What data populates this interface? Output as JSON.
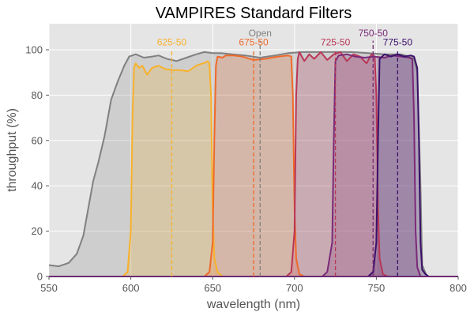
{
  "chart_data": {
    "type": "area",
    "title": "VAMPIRES Standard Filters",
    "xlabel": "wavelength (nm)",
    "ylabel": "throughput (%)",
    "xlim": [
      550,
      800
    ],
    "ylim": [
      0,
      112
    ],
    "xticks": [
      550,
      600,
      650,
      700,
      750,
      800
    ],
    "yticks": [
      0,
      20,
      40,
      60,
      80,
      100
    ],
    "grid": true,
    "legend": "none (inline annotations)",
    "series": [
      {
        "name": "Open",
        "color": "#808080",
        "center_nm": 679,
        "points": [
          [
            550,
            5
          ],
          [
            556,
            4.5
          ],
          [
            562,
            6
          ],
          [
            567,
            10
          ],
          [
            571,
            18
          ],
          [
            574,
            30
          ],
          [
            577,
            42
          ],
          [
            580,
            50
          ],
          [
            584,
            62
          ],
          [
            588,
            78
          ],
          [
            592,
            86
          ],
          [
            596,
            93
          ],
          [
            599,
            97
          ],
          [
            603,
            98
          ],
          [
            608,
            96.5
          ],
          [
            613,
            97
          ],
          [
            617,
            97.5
          ],
          [
            622,
            96
          ],
          [
            628,
            95
          ],
          [
            634,
            96.5
          ],
          [
            640,
            98
          ],
          [
            645,
            99
          ],
          [
            650,
            98.5
          ],
          [
            655,
            98.5
          ],
          [
            662,
            98
          ],
          [
            670,
            97.5
          ],
          [
            679,
            96.5
          ],
          [
            688,
            97.5
          ],
          [
            696,
            98.5
          ],
          [
            705,
            99
          ],
          [
            715,
            99
          ],
          [
            725,
            99
          ],
          [
            735,
            99
          ],
          [
            745,
            98.5
          ],
          [
            755,
            98
          ],
          [
            765,
            98
          ],
          [
            770,
            97
          ],
          [
            773,
            96
          ],
          [
            775,
            90
          ],
          [
            777,
            40
          ],
          [
            778,
            5
          ],
          [
            781,
            0
          ],
          [
            800,
            0
          ]
        ]
      },
      {
        "name": "625-50",
        "color": "#f8b12a",
        "center_nm": 625,
        "points": [
          [
            550,
            0
          ],
          [
            595,
            0
          ],
          [
            598,
            2
          ],
          [
            600,
            20
          ],
          [
            601,
            70
          ],
          [
            602,
            92
          ],
          [
            603,
            94
          ],
          [
            605,
            92
          ],
          [
            607,
            93
          ],
          [
            610,
            89
          ],
          [
            613,
            92
          ],
          [
            617,
            93
          ],
          [
            621,
            91.5
          ],
          [
            626,
            91
          ],
          [
            630,
            91
          ],
          [
            635,
            90.5
          ],
          [
            640,
            93
          ],
          [
            644,
            94
          ],
          [
            646,
            94.5
          ],
          [
            647,
            95
          ],
          [
            648,
            94
          ],
          [
            649,
            80
          ],
          [
            650,
            30
          ],
          [
            651,
            8
          ],
          [
            653,
            2
          ],
          [
            656,
            0
          ],
          [
            800,
            0
          ]
        ]
      },
      {
        "name": "675-50",
        "color": "#ef6a2a",
        "center_nm": 675,
        "points": [
          [
            550,
            0
          ],
          [
            645,
            0
          ],
          [
            648,
            2
          ],
          [
            650,
            15
          ],
          [
            651,
            60
          ],
          [
            652,
            93
          ],
          [
            653,
            97
          ],
          [
            656,
            96.5
          ],
          [
            658,
            97.5
          ],
          [
            663,
            97.5
          ],
          [
            668,
            97
          ],
          [
            675,
            95.5
          ],
          [
            682,
            96
          ],
          [
            690,
            97
          ],
          [
            696,
            97.5
          ],
          [
            698,
            97
          ],
          [
            699,
            80
          ],
          [
            700,
            30
          ],
          [
            701,
            8
          ],
          [
            703,
            1
          ],
          [
            706,
            0
          ],
          [
            800,
            0
          ]
        ]
      },
      {
        "name": "725-50",
        "color": "#b93656",
        "center_nm": 725,
        "points": [
          [
            550,
            0
          ],
          [
            695,
            0
          ],
          [
            698,
            2
          ],
          [
            700,
            20
          ],
          [
            701,
            80
          ],
          [
            702,
            96
          ],
          [
            703,
            99
          ],
          [
            706,
            95
          ],
          [
            709,
            98
          ],
          [
            712,
            96
          ],
          [
            716,
            99
          ],
          [
            720,
            95.5
          ],
          [
            724,
            98
          ],
          [
            728,
            99
          ],
          [
            732,
            95
          ],
          [
            736,
            98
          ],
          [
            740,
            97
          ],
          [
            744,
            94
          ],
          [
            747,
            98
          ],
          [
            749,
            97
          ],
          [
            750,
            80
          ],
          [
            751,
            30
          ],
          [
            752,
            8
          ],
          [
            754,
            1
          ],
          [
            757,
            0
          ],
          [
            800,
            0
          ]
        ]
      },
      {
        "name": "750-50",
        "color": "#7b2a78",
        "center_nm": 748,
        "points": [
          [
            550,
            0
          ],
          [
            717,
            0
          ],
          [
            720,
            2
          ],
          [
            723,
            15
          ],
          [
            724,
            60
          ],
          [
            725,
            95
          ],
          [
            727,
            97.5
          ],
          [
            732,
            98
          ],
          [
            737,
            97
          ],
          [
            743,
            96.5
          ],
          [
            748,
            97
          ],
          [
            755,
            96.5
          ],
          [
            760,
            97.5
          ],
          [
            765,
            97
          ],
          [
            770,
            96.5
          ],
          [
            772,
            96
          ],
          [
            773,
            70
          ],
          [
            774,
            20
          ],
          [
            775,
            4
          ],
          [
            777,
            0
          ],
          [
            800,
            0
          ]
        ]
      },
      {
        "name": "775-50",
        "color": "#3b0f6a",
        "center_nm": 763,
        "points": [
          [
            550,
            0
          ],
          [
            745,
            0
          ],
          [
            748,
            2
          ],
          [
            750,
            15
          ],
          [
            751,
            60
          ],
          [
            752,
            96
          ],
          [
            755,
            98
          ],
          [
            759,
            97
          ],
          [
            763,
            98
          ],
          [
            767,
            97
          ],
          [
            771,
            97.5
          ],
          [
            773,
            97
          ],
          [
            775,
            92
          ],
          [
            776,
            60
          ],
          [
            777,
            15
          ],
          [
            778,
            3
          ],
          [
            780,
            1
          ],
          [
            782,
            0
          ],
          [
            800,
            0
          ]
        ]
      }
    ],
    "annotations": [
      {
        "text": "625-50",
        "x_nm": 625,
        "y_pct": 102,
        "color": "#f8b12a"
      },
      {
        "text": "675-50",
        "x_nm": 675,
        "y_pct": 102,
        "color": "#ef6a2a"
      },
      {
        "text": "Open",
        "x_nm": 679,
        "y_pct": 106,
        "color": "#808080"
      },
      {
        "text": "725-50",
        "x_nm": 725,
        "y_pct": 102,
        "color": "#b93656"
      },
      {
        "text": "750-50",
        "x_nm": 748,
        "y_pct": 106,
        "color": "#7b2a78"
      },
      {
        "text": "775-50",
        "x_nm": 763,
        "y_pct": 102,
        "color": "#3b0f6a"
      }
    ]
  }
}
